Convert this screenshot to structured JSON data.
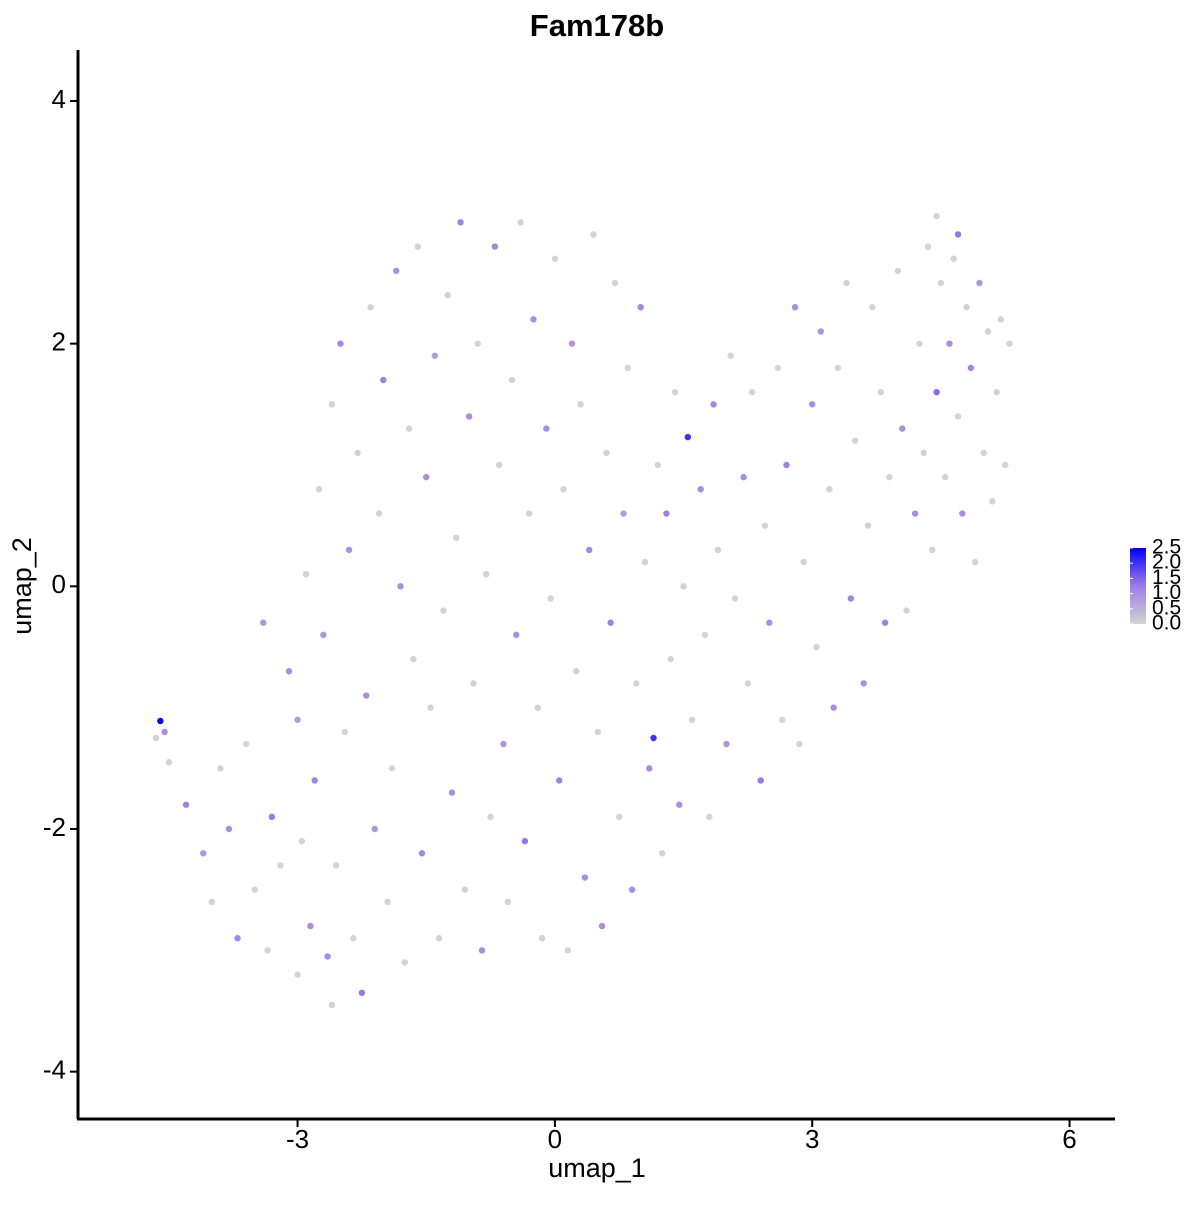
{
  "chart_data": {
    "type": "scatter",
    "title": "Fam178b",
    "x_label": "umap_1",
    "y_label": "umap_2",
    "xlim": [
      -5.56,
      6.53
    ],
    "xticks": [
      -3,
      0,
      3,
      6
    ],
    "ylim": [
      -4.39,
      4.42
    ],
    "yticks": [
      -4,
      -2,
      0,
      2,
      4
    ],
    "colormap": [
      "#d3d3d3",
      "#9e7ce8",
      "#0000ff"
    ],
    "color_range": [
      0,
      2.5
    ],
    "color_ticks": [
      {
        "value": 0,
        "label": "0.0"
      },
      0.5,
      {
        "value": 1,
        "label": "1.0"
      },
      1.5,
      {
        "value": 2,
        "label": "2.0"
      },
      2.5
    ],
    "x": [
      -4.65,
      -4.6,
      -4.55,
      -4.5,
      -4.3,
      -4.1,
      -4.0,
      -3.9,
      -3.8,
      -3.7,
      -3.6,
      -3.5,
      -3.4,
      -3.35,
      -3.3,
      -3.2,
      -3.1,
      -3.0,
      -3.0,
      -2.95,
      -2.9,
      -2.85,
      -2.8,
      -2.75,
      -2.7,
      -2.65,
      -2.6,
      -2.55,
      -2.5,
      -2.45,
      -2.4,
      -2.35,
      -2.3,
      -2.25,
      -2.2,
      -2.15,
      -2.1,
      -2.05,
      -2.0,
      -1.95,
      -1.9,
      -1.85,
      -1.8,
      -1.75,
      -1.7,
      -1.65,
      -1.6,
      -1.55,
      -1.5,
      -1.45,
      -1.4,
      -1.35,
      -1.3,
      -1.25,
      -1.2,
      -1.15,
      -1.1,
      -1.05,
      -1.0,
      -0.95,
      -0.9,
      -0.85,
      -0.8,
      -0.75,
      -0.7,
      -0.65,
      -0.6,
      -0.55,
      -0.5,
      -0.45,
      -0.4,
      -0.35,
      -0.3,
      -0.25,
      -0.2,
      -0.15,
      -0.1,
      -0.05,
      0.0,
      0.05,
      0.1,
      0.15,
      0.2,
      0.25,
      0.3,
      0.35,
      0.4,
      0.45,
      0.5,
      0.55,
      0.6,
      0.65,
      0.7,
      0.75,
      0.8,
      0.85,
      0.9,
      0.95,
      1.0,
      1.05,
      1.1,
      1.15,
      1.2,
      1.25,
      1.3,
      1.35,
      1.4,
      1.45,
      1.5,
      1.55,
      1.6,
      1.7,
      1.75,
      1.8,
      1.85,
      1.9,
      2.0,
      2.05,
      2.1,
      2.2,
      2.25,
      2.3,
      2.4,
      2.45,
      2.5,
      2.6,
      2.65,
      2.7,
      2.8,
      2.85,
      2.9,
      3.0,
      3.05,
      3.1,
      3.2,
      3.25,
      3.3,
      3.4,
      3.45,
      3.5,
      3.6,
      3.65,
      3.7,
      3.8,
      3.85,
      3.9,
      4.0,
      4.05,
      4.1,
      4.2,
      4.25,
      4.3,
      4.35,
      4.4,
      4.45,
      4.5,
      4.55,
      4.6,
      4.65,
      4.7,
      4.75,
      4.8,
      4.85,
      4.9,
      4.95,
      5.0,
      5.05,
      5.1,
      5.15,
      5.2,
      5.25,
      5.3,
      4.7,
      4.45,
      -2.6
    ],
    "y": [
      -1.25,
      -1.11,
      -1.2,
      -1.45,
      -1.8,
      -2.2,
      -2.6,
      -1.5,
      -2.0,
      -2.9,
      -1.3,
      -2.5,
      -0.3,
      -3.0,
      -1.9,
      -2.3,
      -0.7,
      -1.1,
      -3.2,
      -2.1,
      0.1,
      -2.8,
      -1.6,
      0.8,
      -0.4,
      -3.05,
      1.5,
      -2.3,
      2.0,
      -1.2,
      0.3,
      -2.9,
      1.1,
      -3.35,
      -0.9,
      2.3,
      -2.0,
      0.6,
      1.7,
      -2.6,
      -1.5,
      2.6,
      0.0,
      -3.1,
      1.3,
      -0.6,
      2.8,
      -2.2,
      0.9,
      -1.0,
      1.9,
      -2.9,
      -0.2,
      2.4,
      -1.7,
      0.4,
      3.0,
      -2.5,
      1.4,
      -0.8,
      2.0,
      -3.0,
      0.1,
      -1.9,
      2.8,
      1.0,
      -1.3,
      -2.6,
      1.7,
      -0.4,
      3.0,
      -2.1,
      0.6,
      2.2,
      -1.0,
      -2.9,
      1.3,
      -0.1,
      2.7,
      -1.6,
      0.8,
      -3.0,
      2.0,
      -0.7,
      1.5,
      -2.4,
      0.3,
      2.9,
      -1.2,
      -2.8,
      1.1,
      -0.3,
      2.5,
      -1.9,
      0.6,
      1.8,
      -2.5,
      -0.8,
      2.3,
      0.2,
      -1.5,
      -1.25,
      1.0,
      -2.2,
      0.6,
      -0.6,
      1.6,
      -1.8,
      0.0,
      1.23,
      -1.1,
      0.8,
      -0.4,
      -1.9,
      1.5,
      0.3,
      -1.3,
      1.9,
      -0.1,
      0.9,
      -0.8,
      1.6,
      -1.6,
      0.5,
      -0.3,
      1.8,
      -1.1,
      1.0,
      2.3,
      -1.3,
      0.2,
      1.5,
      -0.5,
      2.1,
      0.8,
      -1.0,
      1.8,
      2.5,
      -0.1,
      1.2,
      -0.8,
      0.5,
      2.3,
      1.6,
      -0.3,
      0.9,
      2.6,
      1.3,
      -0.2,
      0.6,
      2.0,
      1.1,
      2.8,
      0.3,
      1.6,
      2.5,
      0.9,
      2.0,
      2.7,
      1.4,
      0.6,
      2.3,
      1.8,
      0.2,
      2.5,
      1.1,
      2.1,
      0.7,
      1.6,
      2.2,
      1.0,
      2.0,
      2.9,
      3.05,
      -3.45
    ],
    "values": [
      0,
      2.5,
      1,
      0,
      1.2,
      0.9,
      0,
      0,
      1,
      1.1,
      0,
      0,
      0.9,
      0,
      1.3,
      0,
      1,
      0.8,
      0,
      0,
      0,
      1,
      1.2,
      0,
      0.9,
      1,
      0,
      0,
      1.1,
      0,
      1,
      0,
      0,
      1.3,
      1,
      0,
      0.9,
      0,
      1.2,
      0,
      0,
      1,
      1,
      0,
      0,
      0,
      0,
      1.1,
      1,
      0,
      0.8,
      0,
      0,
      0,
      1,
      0,
      1.2,
      0,
      1,
      0,
      0,
      1,
      0,
      0,
      1.1,
      0,
      0.9,
      0,
      0,
      1,
      0,
      1.3,
      0,
      1,
      0,
      0,
      1,
      0,
      0,
      1.2,
      0,
      0,
      0.9,
      0,
      0,
      1,
      1.1,
      0,
      0,
      1,
      0,
      1.2,
      0,
      0,
      0.8,
      0,
      1,
      0,
      1.1,
      0,
      1,
      2.0,
      0,
      0,
      1.2,
      0,
      0,
      1,
      0,
      2.0,
      0,
      1,
      0,
      0,
      1.1,
      0,
      0.9,
      0,
      0,
      1,
      0,
      0,
      1.3,
      0,
      1,
      0,
      0,
      1.2,
      1,
      0,
      0,
      1,
      0,
      0.9,
      0,
      1,
      0,
      0,
      1.1,
      0,
      1,
      0,
      0,
      0,
      1.2,
      0,
      0,
      1,
      0,
      1,
      0,
      0,
      0,
      0,
      1.4,
      0,
      0,
      1,
      0,
      0,
      1,
      0,
      1.1,
      0,
      0.9,
      0,
      0,
      0,
      0,
      0,
      0,
      0,
      1.3,
      0,
      0
    ]
  }
}
